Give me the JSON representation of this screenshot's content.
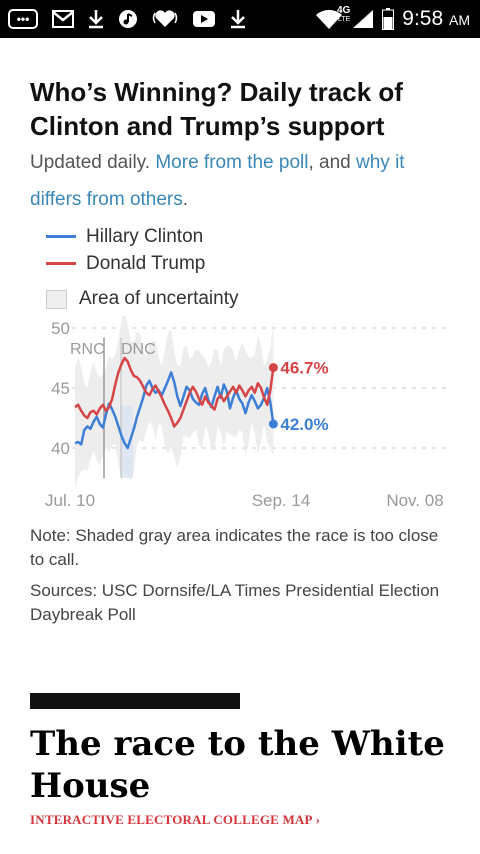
{
  "status_bar": {
    "time": "9:58",
    "ampm": "AM",
    "network": "4G",
    "network_sub": "LTE",
    "icons": [
      "chat-icon",
      "gmail-icon",
      "download-icon",
      "music-icon",
      "iheart-icon",
      "youtube-icon",
      "download-icon",
      "wifi-icon",
      "signal-icon",
      "battery-icon"
    ]
  },
  "article": {
    "title": "Who’s Winning? Daily track of Clinton and Trump’s support",
    "subtitle_prefix": "Updated daily. ",
    "link_poll": "More from the poll",
    "subtitle_middle": ", and ",
    "link_differs": "why it differs from others",
    "subtitle_suffix": "."
  },
  "legend": {
    "clinton": "Hillary Clinton",
    "trump": "Donald Trump",
    "uncertainty": "Area of uncertainty"
  },
  "chart_data": {
    "type": "line",
    "title": "Who’s Winning? Daily track of Clinton and Trump’s support",
    "x_ticks": [
      "Jul. 10",
      "Sep. 14",
      "Nov. 08"
    ],
    "y_ticks": [
      40,
      45,
      50
    ],
    "ylim": [
      38.5,
      50
    ],
    "grid": true,
    "annotations": [
      "RNC",
      "DNC"
    ],
    "series": [
      {
        "name": "Hillary Clinton",
        "color": "#3d7fd6",
        "end_label": "42.0%",
        "values": [
          40.4,
          40.5,
          40.3,
          41.5,
          41.8,
          41.6,
          42.2,
          42.6,
          42.0,
          41.7,
          42.8,
          43.7,
          43.2,
          42.6,
          41.8,
          41.0,
          40.4,
          40.0,
          40.8,
          41.6,
          42.6,
          43.4,
          44.2,
          45.2,
          45.6,
          45.0,
          44.6,
          44.8,
          44.4,
          45.0,
          45.6,
          46.3,
          45.5,
          44.3,
          43.5,
          44.3,
          45.1,
          44.8,
          44.1,
          43.8,
          43.6,
          44.5,
          45.0,
          44.0,
          43.4,
          44.3,
          45.1,
          44.2,
          45.3,
          44.7,
          43.3,
          44.2,
          44.8,
          44.1,
          43.7,
          42.9,
          43.8,
          44.4,
          43.9,
          43.3,
          43.6,
          44.2,
          45.0,
          43.8,
          42.0
        ]
      },
      {
        "name": "Donald Trump",
        "color": "#d64545",
        "end_label": "46.7%",
        "values": [
          43.4,
          43.6,
          43.1,
          42.7,
          42.5,
          43.0,
          43.1,
          42.8,
          43.3,
          43.6,
          43.1,
          43.4,
          44.1,
          45.3,
          46.3,
          47.0,
          47.5,
          47.2,
          46.5,
          46.0,
          45.9,
          45.6,
          45.1,
          44.6,
          44.4,
          44.9,
          45.2,
          44.7,
          44.2,
          43.6,
          43.1,
          42.5,
          41.8,
          42.1,
          42.5,
          43.2,
          43.9,
          44.6,
          45.1,
          44.7,
          44.1,
          43.6,
          44.3,
          43.8,
          43.5,
          43.2,
          44.1,
          44.4,
          43.9,
          44.3,
          44.7,
          45.1,
          44.6,
          45.2,
          44.8,
          44.3,
          44.8,
          45.1,
          44.6,
          45.4,
          45.0,
          44.2,
          43.6,
          44.8,
          46.7
        ]
      }
    ]
  },
  "note": "Note: Shaded gray area indicates the race is too close to call.",
  "sources": "Sources: USC Dornsife/LA Times Presidential Election Daybreak Poll",
  "next_section": {
    "title": "The race to the White House",
    "link": "INTERACTIVE ELECTORAL COLLEGE MAP",
    "link_arrow": "›"
  }
}
